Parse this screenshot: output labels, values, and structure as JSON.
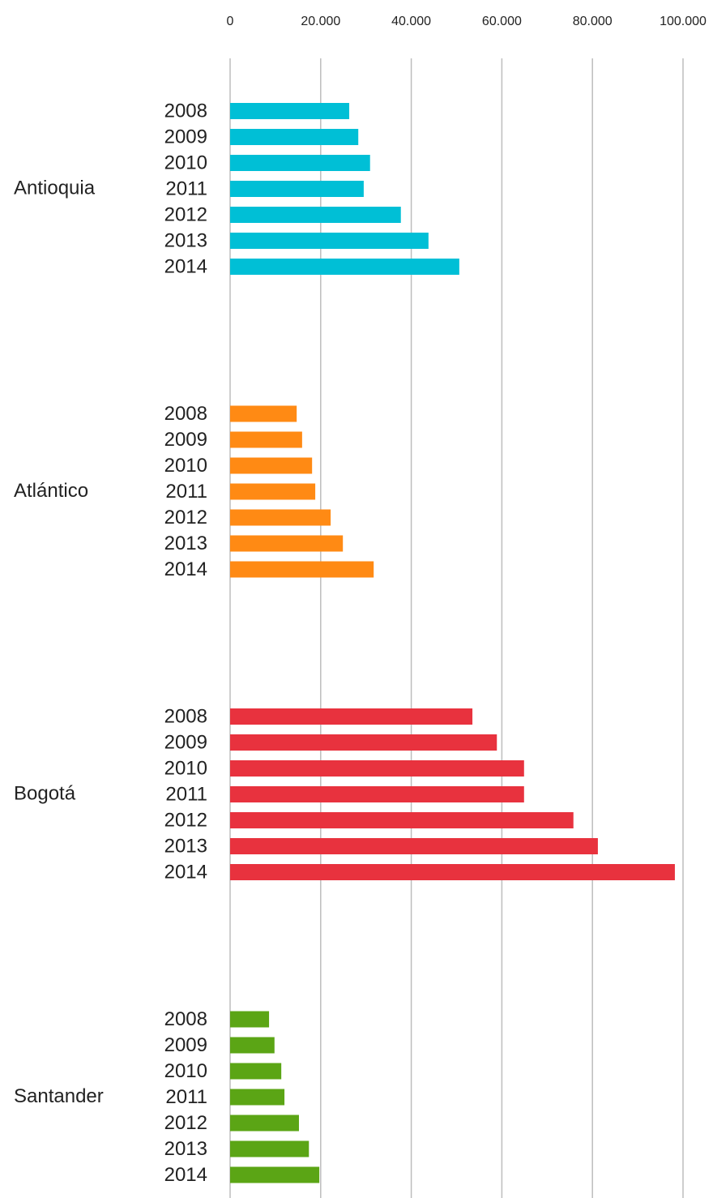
{
  "chart_data": {
    "type": "bar",
    "orientation": "horizontal",
    "categories": [
      "2008",
      "2009",
      "2010",
      "2011",
      "2012",
      "2013",
      "2014"
    ],
    "series": [
      {
        "name": "Antioquia",
        "color": "#00bfd6",
        "values": [
          26300,
          28300,
          30900,
          29500,
          37700,
          43800,
          50600
        ]
      },
      {
        "name": "Atlántico",
        "color": "#ff8a14",
        "values": [
          14700,
          15900,
          18100,
          18800,
          22200,
          24900,
          31700
        ]
      },
      {
        "name": "Bogotá",
        "color": "#e8323e",
        "values": [
          53500,
          58900,
          64900,
          64900,
          75800,
          81200,
          98200
        ]
      },
      {
        "name": "Santander",
        "color": "#5ba515",
        "values": [
          8600,
          9800,
          11300,
          12000,
          15200,
          17400,
          19700
        ]
      }
    ],
    "xlim": [
      0,
      100000
    ],
    "xticks": [
      0,
      {
        "value": 20000,
        "label": "20.000"
      },
      {
        "value": 40000,
        "label": "40.000"
      },
      {
        "value": 60000,
        "label": "60.000"
      },
      {
        "value": 80000,
        "label": "80.000"
      },
      {
        "value": 100000,
        "label": "100.000"
      }
    ],
    "grid": true
  }
}
